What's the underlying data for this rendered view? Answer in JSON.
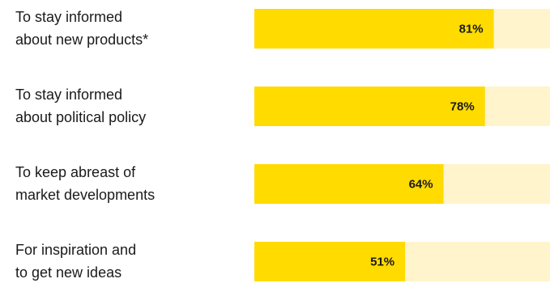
{
  "chart_data": {
    "type": "bar",
    "orientation": "horizontal",
    "categories": [
      [
        "To stay informed",
        "about new products*"
      ],
      [
        "To stay informed",
        "about political policy"
      ],
      [
        "To keep abreast of",
        "market developments"
      ],
      [
        "For inspiration and",
        "to get new ideas"
      ]
    ],
    "values": [
      81,
      78,
      64,
      51
    ],
    "value_labels": [
      "81%",
      "78%",
      "64%",
      "51%"
    ],
    "xlim": [
      0,
      100
    ],
    "grid": false,
    "colors": {
      "bar": "#FFDB00",
      "track": "#FFF4CC"
    }
  }
}
